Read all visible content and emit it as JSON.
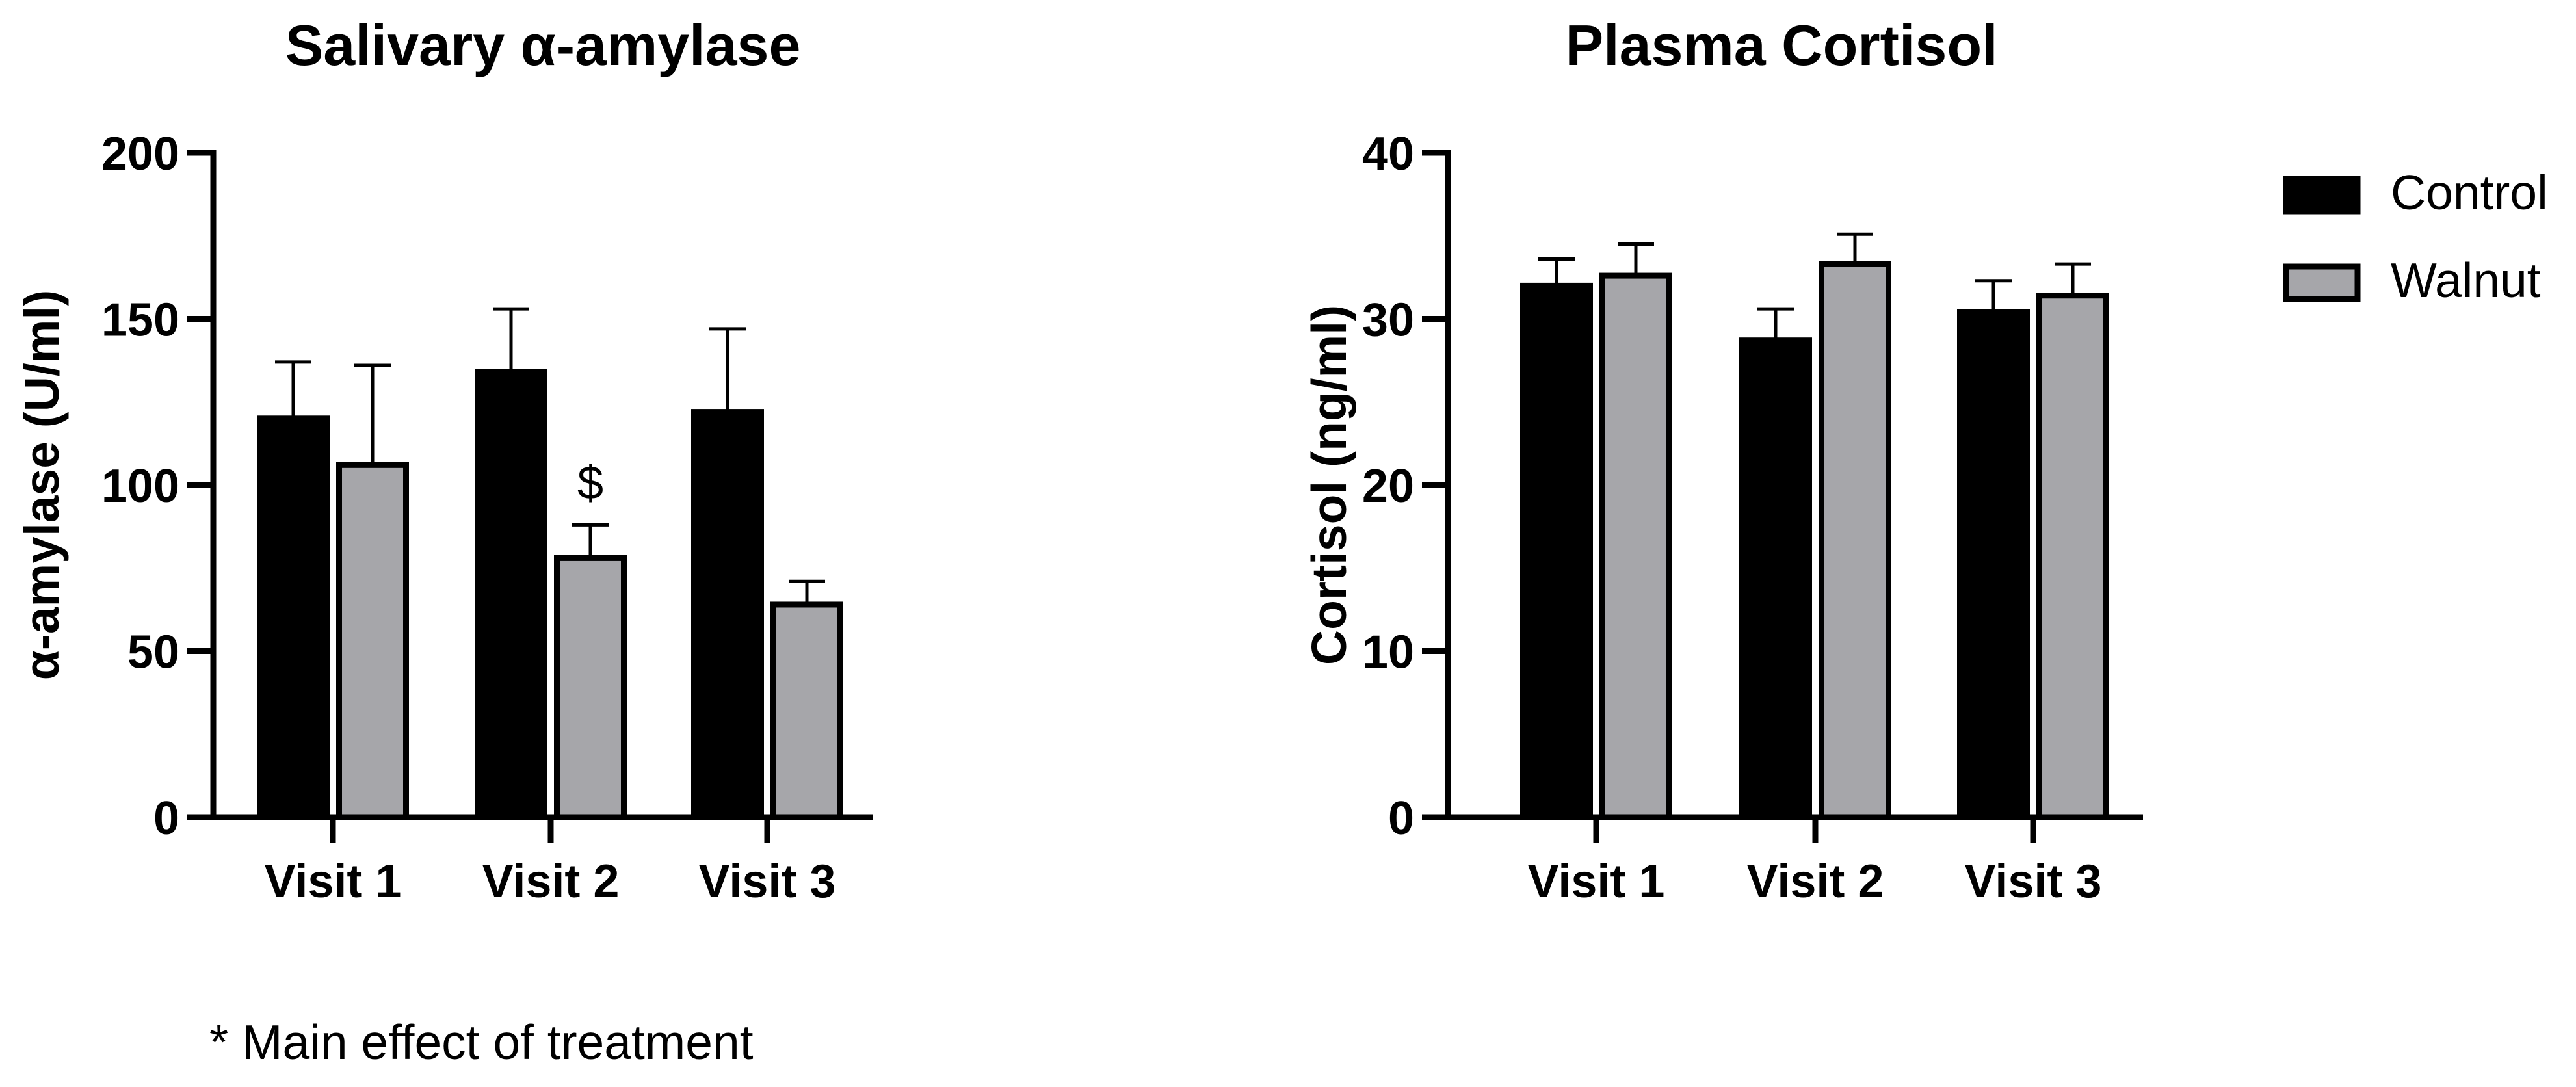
{
  "colors": {
    "control": "#000000",
    "walnut": "#a6a6aa",
    "axis": "#000000"
  },
  "chart_data": [
    {
      "type": "bar",
      "title": "Salivary α-amylase",
      "xlabel": "",
      "ylabel": "α-amylase (U/ml)",
      "categories": [
        "Visit 1",
        "Visit 2",
        "Visit 3"
      ],
      "ylim": [
        0,
        200
      ],
      "yticks": [
        0,
        50,
        100,
        150,
        200
      ],
      "series": [
        {
          "name": "Control",
          "values": [
            120,
            134,
            122
          ],
          "errors": [
            17,
            19,
            25
          ]
        },
        {
          "name": "Walnut",
          "values": [
            106,
            78,
            64
          ],
          "errors": [
            30,
            10,
            7
          ]
        }
      ],
      "annotations": [
        {
          "text": "$",
          "category": "Visit 2",
          "series": "Walnut"
        }
      ]
    },
    {
      "type": "bar",
      "title": "Plasma Cortisol",
      "xlabel": "",
      "ylabel": "Cortisol (ng/ml)",
      "categories": [
        "Visit 1",
        "Visit 2",
        "Visit 3"
      ],
      "ylim": [
        0,
        40
      ],
      "yticks": [
        0,
        10,
        20,
        30,
        40
      ],
      "series": [
        {
          "name": "Control",
          "values": [
            32,
            28.7,
            30.4
          ],
          "errors": [
            1.6,
            1.9,
            1.9
          ]
        },
        {
          "name": "Walnut",
          "values": [
            32.6,
            33.3,
            31.4
          ],
          "errors": [
            1.9,
            1.8,
            1.9
          ]
        }
      ],
      "legend": {
        "placement": "right",
        "entries": [
          "Control",
          "Walnut"
        ]
      }
    }
  ],
  "footnote": "* Main effect of treatment"
}
